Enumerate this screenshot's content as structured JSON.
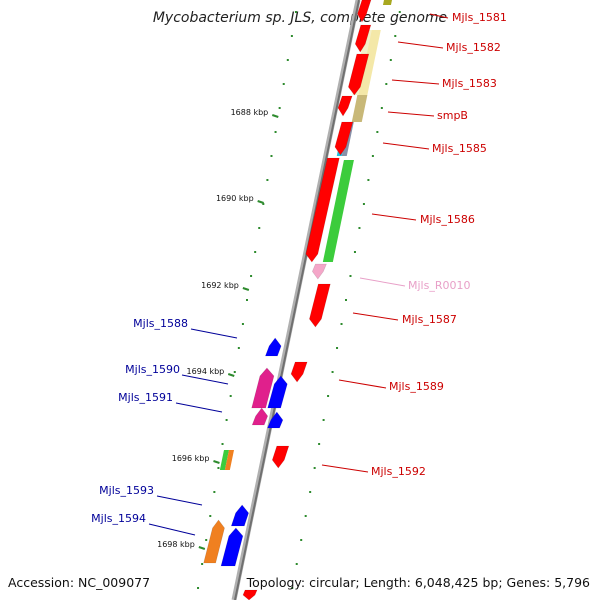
{
  "title": "Mycobacterium sp. JLS, complete genome",
  "footer": {
    "accession": "Accession: NC_009077",
    "info": "Topology: circular; Length: 6,048,425 bp; Genes: 5,796"
  },
  "scale_labels": [
    "1688 kbp",
    "1690 kbp",
    "1692 kbp",
    "1694 kbp",
    "1696 kbp",
    "1698 kbp"
  ],
  "colors": {
    "forward_label": "#cc0000",
    "reverse_label": "#000099",
    "rna_label": "#e8a0c8",
    "backbone": "#888888",
    "tick": "#2e8b2e"
  },
  "genes": [
    {
      "id": "Mjls_1581",
      "strand": "forward",
      "color": "#ff0000"
    },
    {
      "id": "Mjls_1582",
      "strand": "forward",
      "color": "#ff0000"
    },
    {
      "id": "Mjls_1583",
      "strand": "forward",
      "color": "#ff0000"
    },
    {
      "id": "smpB",
      "strand": "forward",
      "color": "#ff0000"
    },
    {
      "id": "Mjls_1585",
      "strand": "forward",
      "color": "#ff0000"
    },
    {
      "id": "Mjls_1586",
      "strand": "forward",
      "color": "#ff0000"
    },
    {
      "id": "Mjls_R0010",
      "strand": "forward",
      "color": "#f4a6c8"
    },
    {
      "id": "Mjls_1587",
      "strand": "forward",
      "color": "#ff0000"
    },
    {
      "id": "Mjls_1588",
      "strand": "reverse",
      "color": "#0000ff"
    },
    {
      "id": "Mjls_1589",
      "strand": "forward",
      "color": "#ff0000"
    },
    {
      "id": "Mjls_1590",
      "strand": "reverse",
      "color": "#0000ff"
    },
    {
      "id": "Mjls_1591",
      "strand": "reverse",
      "color": "#0000ff"
    },
    {
      "id": "Mjls_1592",
      "strand": "forward",
      "color": "#ff0000"
    },
    {
      "id": "Mjls_1593",
      "strand": "reverse",
      "color": "#0000ff"
    },
    {
      "id": "Mjls_1594",
      "strand": "reverse",
      "color": "#0000ff"
    }
  ]
}
